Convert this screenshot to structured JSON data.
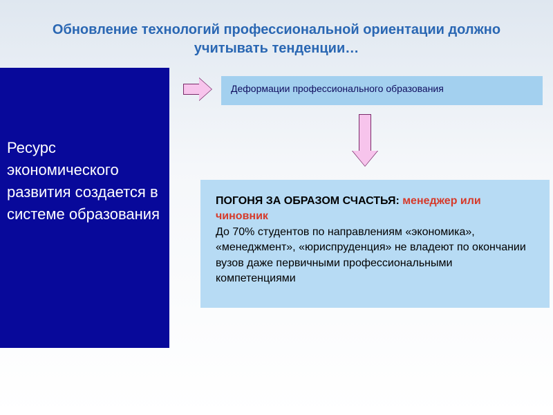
{
  "colors": {
    "title": "#2a67b3",
    "sidebar_bg": "#08099a",
    "sidebar_text": "#ffffff",
    "topbox_bg": "#a3d0ef",
    "topbox_text": "#0f0d5e",
    "mainbox_bg": "#b7dbf4",
    "mainbox_text": "#000000",
    "highlight": "#d63a2a",
    "arrow_fill": "#f7c4ec",
    "arrow_border": "#7a2a6a"
  },
  "title": "Обновление технологий профессиональной ориентации должно учитывать тенденции…",
  "sidebar": {
    "text": "Ресурс экономического развития создается в системе образования"
  },
  "topbox": {
    "text": "Деформации профессионального образования"
  },
  "mainbox": {
    "lead": "ПОГОНЯ ЗА ОБРАЗОМ СЧАСТЬЯ: ",
    "highlight": "менеджер или чиновник",
    "body": "До 70% студентов по направлениям «экономика», «менеджмент», «юриспруденция» не владеют по окончании вузов даже первичными профессиональными компетенциями"
  }
}
